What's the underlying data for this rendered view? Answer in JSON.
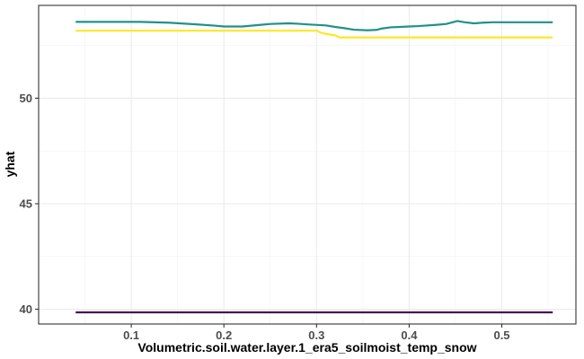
{
  "chart_data": {
    "type": "line",
    "title": "",
    "xlabel": "Volumetric.soil.water.layer.1_era5_soilmoist_temp_snow",
    "ylabel": "yhat",
    "xlim": [
      0.0,
      0.58
    ],
    "ylim": [
      39.3,
      54.4
    ],
    "x_ticks": [
      0.1,
      0.2,
      0.3,
      0.4,
      0.5
    ],
    "x_tick_labels": [
      "0.1",
      "0.2",
      "0.3",
      "0.4",
      "0.5"
    ],
    "y_ticks": [
      40,
      45,
      50
    ],
    "y_tick_labels": [
      "40",
      "45",
      "50"
    ],
    "grid": true,
    "legend": "none",
    "series": [
      {
        "color": "#21908C",
        "x": [
          0.04,
          0.08,
          0.11,
          0.14,
          0.17,
          0.19,
          0.2,
          0.22,
          0.24,
          0.25,
          0.27,
          0.28,
          0.29,
          0.31,
          0.32,
          0.33,
          0.34,
          0.355,
          0.365,
          0.37,
          0.38,
          0.39,
          0.4,
          0.41,
          0.43,
          0.44,
          0.447,
          0.452,
          0.46,
          0.47,
          0.48,
          0.49,
          0.5,
          0.52,
          0.555
        ],
        "y": [
          53.62,
          53.62,
          53.62,
          53.58,
          53.5,
          53.44,
          53.4,
          53.4,
          53.48,
          53.52,
          53.55,
          53.53,
          53.5,
          53.45,
          53.38,
          53.32,
          53.25,
          53.22,
          53.24,
          53.3,
          53.36,
          53.38,
          53.4,
          53.42,
          53.48,
          53.52,
          53.6,
          53.66,
          53.6,
          53.55,
          53.58,
          53.6,
          53.6,
          53.6,
          53.6
        ]
      },
      {
        "color": "#FDE725",
        "x": [
          0.04,
          0.1,
          0.2,
          0.28,
          0.3,
          0.305,
          0.31,
          0.32,
          0.325,
          0.33,
          0.4,
          0.5,
          0.555
        ],
        "y": [
          53.2,
          53.2,
          53.2,
          53.2,
          53.2,
          53.1,
          53.05,
          52.98,
          52.88,
          52.88,
          52.88,
          52.88,
          52.88
        ]
      },
      {
        "color": "#440154",
        "x": [
          0.04,
          0.555
        ],
        "y": [
          39.85,
          39.85
        ]
      }
    ]
  }
}
